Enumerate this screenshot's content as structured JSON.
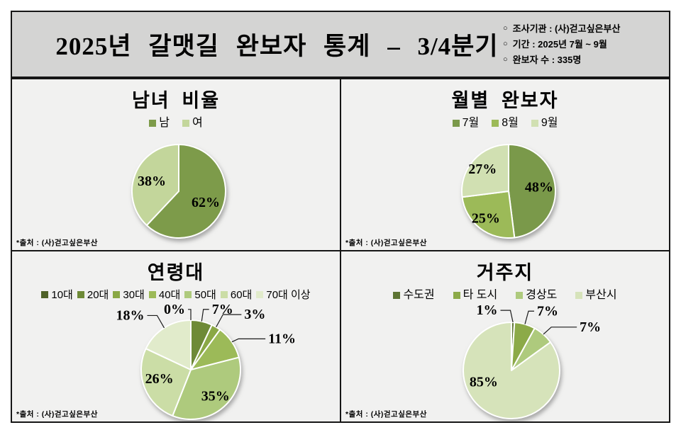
{
  "header": {
    "title": "2025년 갈맷길 완보자 통계 – 3/4분기",
    "bullet": "○",
    "info": [
      "조사기관 : (사)걷고싶은부산",
      "기간 : 2025년 7월 ~ 9월",
      "완보자 수 : 335명"
    ]
  },
  "source_note": "*출처 : (사)걷고싶은부산",
  "chart_data": [
    {
      "type": "pie",
      "title": "남녀 비율",
      "legend_position": "top",
      "unit": "%",
      "start_angle": "12-oclock-clockwise",
      "slices": [
        {
          "label": "남",
          "value": 62,
          "color": "#7d9b4a"
        },
        {
          "label": "여",
          "value": 38,
          "color": "#c3d69b"
        }
      ]
    },
    {
      "type": "pie",
      "title": "월별 완보자",
      "legend_position": "top",
      "unit": "%",
      "start_angle": "12-oclock-clockwise",
      "slices": [
        {
          "label": "7월",
          "value": 48,
          "color": "#7a994a",
          "nudge": [
            2,
            -4
          ]
        },
        {
          "label": "8월",
          "value": 25,
          "color": "#9cba58",
          "nudge": [
            -7,
            5
          ]
        },
        {
          "label": "9월",
          "value": 27,
          "color": "#d1e0b2",
          "nudge": [
            -6,
            -5
          ]
        }
      ]
    },
    {
      "type": "pie",
      "title": "연령대",
      "legend_position": "top",
      "unit": "%",
      "start_angle": "12-oclock-clockwise",
      "slices": [
        {
          "label": "10대",
          "value": 0,
          "color": "#4f6228",
          "side": "left",
          "hlen": 4,
          "nudge": [
            0,
            -4
          ]
        },
        {
          "label": "20대",
          "value": 7,
          "color": "#6e8a37",
          "hlen": 8,
          "nudge": [
            0,
            -6
          ]
        },
        {
          "label": "30대",
          "value": 3,
          "color": "#8aa845",
          "hlen": 26,
          "nudge": [
            4,
            -8
          ]
        },
        {
          "label": "40대",
          "value": 11,
          "color": "#9cba58",
          "hlen": 38,
          "nudge": [
            0,
            2
          ]
        },
        {
          "label": "50대",
          "value": 35,
          "color": "#aeca7d",
          "nudge": [
            6,
            4
          ]
        },
        {
          "label": "60대",
          "value": 26,
          "color": "#cbdda6",
          "nudge": [
            -4,
            -4
          ]
        },
        {
          "label": "70대 이상",
          "value": 18,
          "color": "#e1ebcb",
          "hlen": 14,
          "nudge": [
            -4,
            -8
          ]
        }
      ]
    },
    {
      "type": "pie",
      "title": "거주지",
      "legend_position": "top",
      "unit": "%",
      "start_angle": "12-oclock-clockwise",
      "slices": [
        {
          "label": "수도권",
          "value": 1,
          "color": "#5d7433",
          "side": "left",
          "hlen": 14,
          "nudge": [
            -4,
            -6
          ]
        },
        {
          "label": "타 도시",
          "value": 7,
          "color": "#8caa48",
          "hlen": 8,
          "nudge": [
            2,
            -8
          ]
        },
        {
          "label": "경상도",
          "value": 7,
          "color": "#aeca7d",
          "hlen": 36,
          "nudge": [
            4,
            -2
          ]
        },
        {
          "label": "부산시",
          "value": 85,
          "color": "#d6e3ba",
          "nudge": [
            -20,
            -22
          ]
        }
      ]
    }
  ]
}
